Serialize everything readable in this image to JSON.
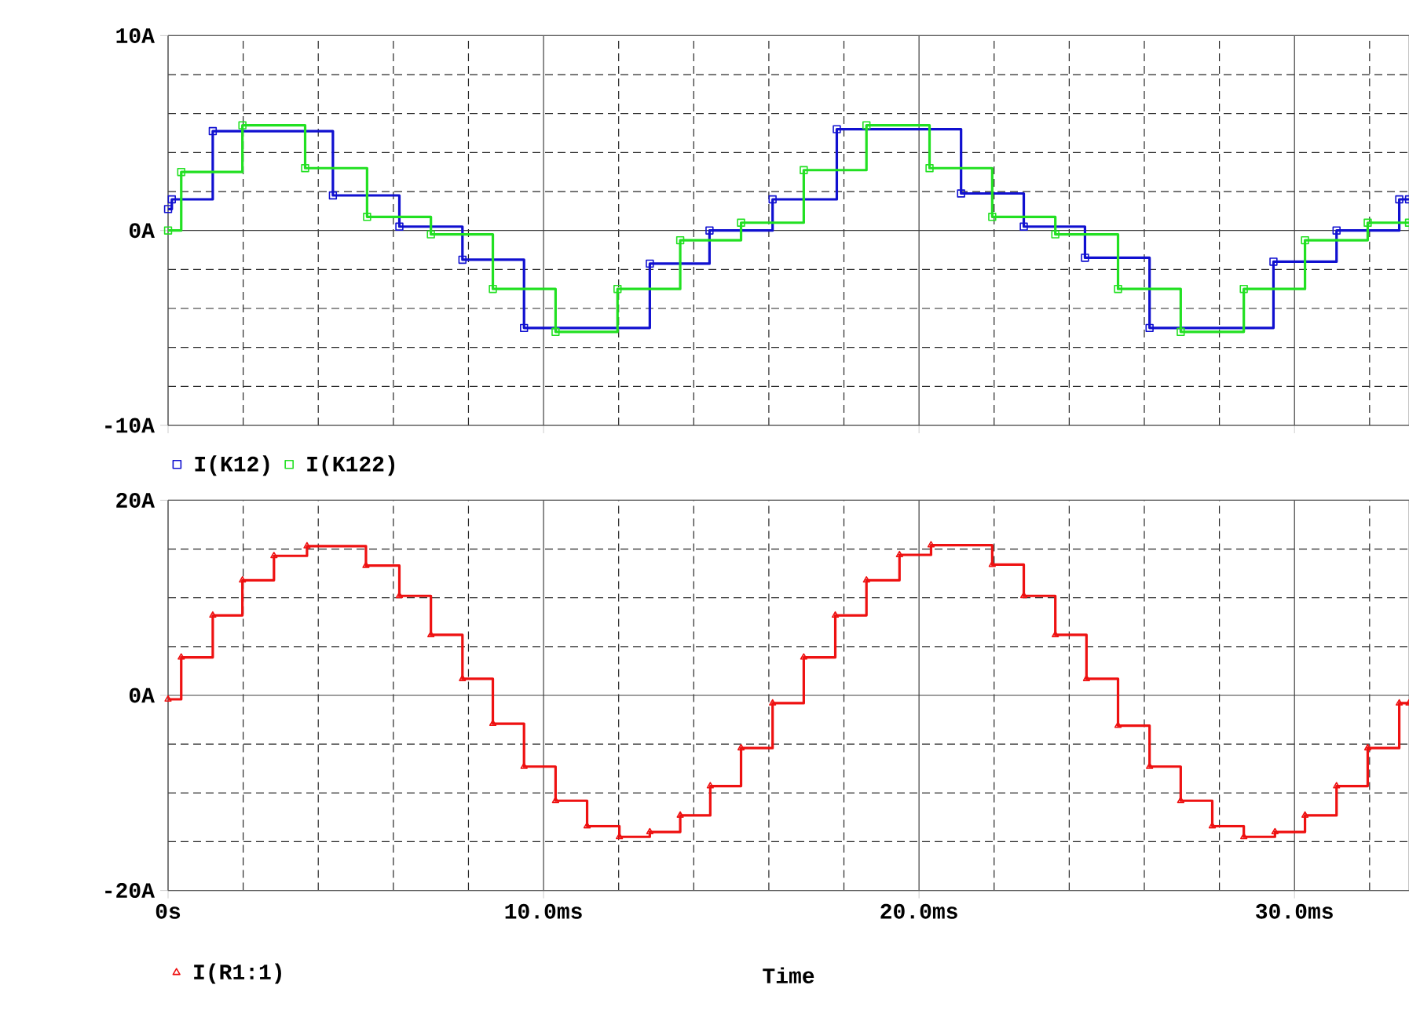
{
  "chart_data": [
    {
      "type": "step",
      "xlim": [
        0,
        33.05
      ],
      "ylim": [
        -10,
        10
      ],
      "xticks": [
        {
          "value": 0,
          "label": null
        },
        {
          "value": 2,
          "label": null
        },
        {
          "value": 4,
          "label": null
        },
        {
          "value": 6,
          "label": null
        },
        {
          "value": 8,
          "label": null
        },
        {
          "value": 10,
          "label": null
        },
        {
          "value": 12,
          "label": null
        },
        {
          "value": 14,
          "label": null
        },
        {
          "value": 16,
          "label": null
        },
        {
          "value": 18,
          "label": null
        },
        {
          "value": 20,
          "label": null
        },
        {
          "value": 22,
          "label": null
        },
        {
          "value": 24,
          "label": null
        },
        {
          "value": 26,
          "label": null
        },
        {
          "value": 28,
          "label": null
        },
        {
          "value": 30,
          "label": null
        },
        {
          "value": 32,
          "label": null
        }
      ],
      "yticks": [
        {
          "value": -10,
          "label": "-10A"
        },
        {
          "value": -8,
          "label": null
        },
        {
          "value": -6,
          "label": null
        },
        {
          "value": -4,
          "label": null
        },
        {
          "value": -2,
          "label": null
        },
        {
          "value": 0,
          "label": "0A"
        },
        {
          "value": 2,
          "label": null
        },
        {
          "value": 4,
          "label": null
        },
        {
          "value": 6,
          "label": null
        },
        {
          "value": 8,
          "label": null
        },
        {
          "value": 10,
          "label": "10A"
        }
      ],
      "tick_labels": "y",
      "grid": true,
      "legend": "bottom left",
      "marker": "square",
      "line_style": "solid",
      "series": [
        {
          "name": "I(K12)",
          "color": "#1010d0",
          "x": [
            0,
            0.1,
            1.19,
            4.39,
            6.16,
            7.84,
            9.48,
            12.83,
            14.42,
            16.1,
            17.81,
            21.12,
            22.79,
            24.42,
            26.14,
            29.44,
            31.12,
            32.79,
            33.05
          ],
          "values": [
            1.1,
            1.6,
            5.1,
            1.8,
            0.2,
            -1.5,
            -5.0,
            -1.7,
            0,
            1.6,
            5.2,
            1.9,
            0.2,
            -1.4,
            -5.0,
            -1.6,
            0,
            1.6,
            1.6
          ]
        },
        {
          "name": "I(K122)",
          "color": "#22e022",
          "x": [
            0,
            0.35,
            1.98,
            3.65,
            5.3,
            7.0,
            8.65,
            10.32,
            11.97,
            13.64,
            15.26,
            16.93,
            18.6,
            20.28,
            21.95,
            23.63,
            25.3,
            26.97,
            28.65,
            30.28,
            31.95,
            33.05
          ],
          "values": [
            0,
            3.0,
            5.4,
            3.2,
            0.7,
            -0.2,
            -3.0,
            -5.2,
            -3.0,
            -0.5,
            0.4,
            3.1,
            5.4,
            3.2,
            0.7,
            -0.2,
            -3.0,
            -5.2,
            -3.0,
            -0.5,
            0.4,
            0.4
          ]
        }
      ]
    },
    {
      "type": "step",
      "xlim": [
        0,
        33.05
      ],
      "ylim": [
        -20,
        20
      ],
      "xlabel": "Time",
      "xticks": [
        {
          "value": 0,
          "label": "0s"
        },
        {
          "value": 2,
          "label": null
        },
        {
          "value": 4,
          "label": null
        },
        {
          "value": 6,
          "label": null
        },
        {
          "value": 8,
          "label": null
        },
        {
          "value": 10,
          "label": "10.0ms"
        },
        {
          "value": 12,
          "label": null
        },
        {
          "value": 14,
          "label": null
        },
        {
          "value": 16,
          "label": null
        },
        {
          "value": 18,
          "label": null
        },
        {
          "value": 20,
          "label": "20.0ms"
        },
        {
          "value": 22,
          "label": null
        },
        {
          "value": 24,
          "label": null
        },
        {
          "value": 26,
          "label": null
        },
        {
          "value": 28,
          "label": null
        },
        {
          "value": 30,
          "label": "30.0ms"
        },
        {
          "value": 32,
          "label": null
        }
      ],
      "yticks": [
        {
          "value": -20,
          "label": "-20A"
        },
        {
          "value": -15,
          "label": null
        },
        {
          "value": -10,
          "label": null
        },
        {
          "value": -5,
          "label": null
        },
        {
          "value": 0,
          "label": "0A"
        },
        {
          "value": 5,
          "label": null
        },
        {
          "value": 10,
          "label": null
        },
        {
          "value": 15,
          "label": null
        },
        {
          "value": 20,
          "label": "20A"
        }
      ],
      "grid": true,
      "legend": "bottom left",
      "marker": "triangle",
      "line_style": "solid",
      "series": [
        {
          "name": "I(R1:1)",
          "color": "#ee1111",
          "x": [
            0,
            0.35,
            1.19,
            1.98,
            2.82,
            3.7,
            5.27,
            6.16,
            7.0,
            7.84,
            8.65,
            9.48,
            10.32,
            11.16,
            12.02,
            12.83,
            13.64,
            14.44,
            15.26,
            16.1,
            16.93,
            17.77,
            18.6,
            19.48,
            20.32,
            21.95,
            22.79,
            23.63,
            24.46,
            25.3,
            26.14,
            26.97,
            27.81,
            28.65,
            29.48,
            30.28,
            31.12,
            31.95,
            32.79,
            33.05
          ],
          "values": [
            -0.4,
            3.9,
            8.2,
            11.8,
            14.3,
            15.3,
            13.3,
            10.2,
            6.2,
            1.7,
            -2.9,
            -7.3,
            -10.8,
            -13.4,
            -14.5,
            -14.0,
            -12.3,
            -9.3,
            -5.4,
            -0.8,
            3.9,
            8.2,
            11.8,
            14.4,
            15.4,
            13.4,
            10.2,
            6.2,
            1.7,
            -3.1,
            -7.3,
            -10.8,
            -13.4,
            -14.5,
            -14.0,
            -12.3,
            -9.3,
            -5.4,
            -0.8,
            -0.8
          ]
        }
      ]
    }
  ]
}
